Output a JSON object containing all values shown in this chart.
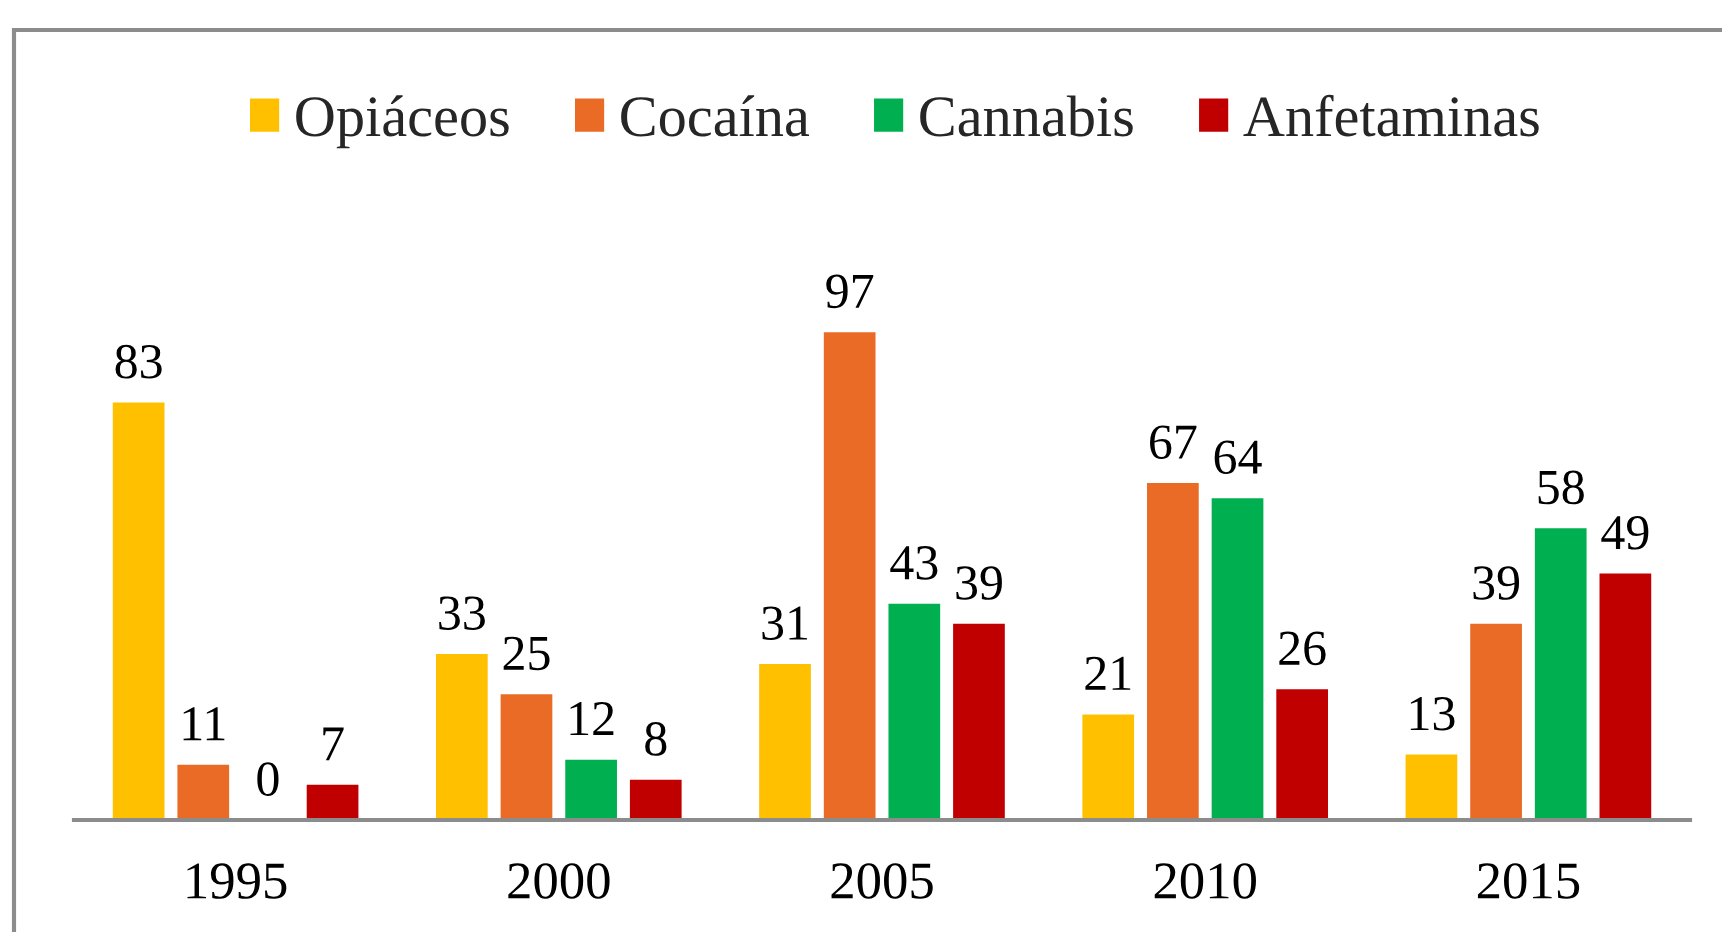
{
  "chart_data": {
    "type": "bar",
    "categories": [
      "1995",
      "2000",
      "2005",
      "2010",
      "2015"
    ],
    "series": [
      {
        "name": "Opiáceos",
        "color": "#ffc000",
        "values": [
          83,
          33,
          31,
          21,
          13
        ]
      },
      {
        "name": "Cocaína",
        "color": "#ea6b26",
        "values": [
          11,
          25,
          97,
          67,
          39
        ]
      },
      {
        "name": "Cannabis",
        "color": "#00b050",
        "values": [
          0,
          12,
          43,
          64,
          58
        ]
      },
      {
        "name": "Anfetaminas",
        "color": "#c00000",
        "values": [
          7,
          8,
          39,
          26,
          49
        ]
      }
    ],
    "data_labels": true,
    "legend": "top",
    "tick_labels": "x"
  }
}
